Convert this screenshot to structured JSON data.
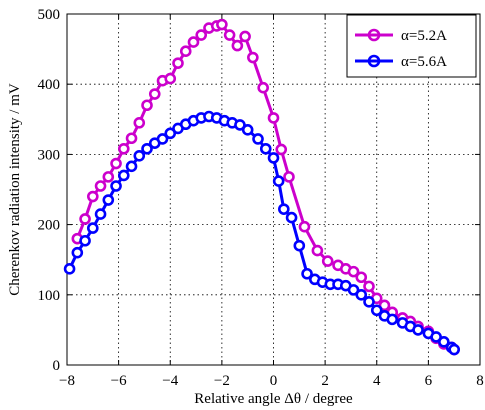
{
  "chart_data": {
    "type": "line",
    "title": "",
    "xlabel": "Relative angle Δθ / degree",
    "ylabel": "Cherenkov radiation intensity / mV",
    "xlim": [
      -8,
      8
    ],
    "ylim": [
      0,
      500
    ],
    "xticks": [
      -8,
      -6,
      -4,
      -2,
      0,
      2,
      4,
      6,
      8
    ],
    "yticks": [
      0,
      100,
      200,
      300,
      400,
      500
    ],
    "xtick_labels": [
      "−8",
      "−6",
      "−4",
      "−2",
      "0",
      "2",
      "4",
      "6",
      "8"
    ],
    "ytick_labels": [
      "0",
      "100",
      "200",
      "300",
      "400",
      "500"
    ],
    "grid": true,
    "grid_style": "dotted",
    "legend_position": "top-right",
    "series": [
      {
        "name": "α=5.2A",
        "color": "#cc00cc",
        "marker": "circle",
        "x": [
          -7.6,
          -7.3,
          -7.0,
          -6.7,
          -6.4,
          -6.1,
          -5.8,
          -5.5,
          -5.2,
          -4.9,
          -4.6,
          -4.3,
          -4.0,
          -3.7,
          -3.4,
          -3.1,
          -2.8,
          -2.5,
          -2.2,
          -2.0,
          -1.7,
          -1.4,
          -1.1,
          -0.8,
          -0.4,
          0.0,
          0.3,
          0.6,
          1.2,
          1.7,
          2.1,
          2.5,
          2.8,
          3.1,
          3.4,
          3.7,
          4.0,
          4.3,
          4.6,
          5.0,
          5.3,
          5.6,
          6.0,
          6.3,
          6.6,
          6.9,
          7.0
        ],
        "y": [
          180,
          208,
          240,
          255,
          268,
          287,
          308,
          323,
          345,
          370,
          386,
          405,
          408,
          430,
          447,
          460,
          470,
          480,
          483,
          485,
          470,
          455,
          468,
          438,
          395,
          352,
          307,
          268,
          197,
          163,
          148,
          142,
          137,
          133,
          125,
          112,
          95,
          85,
          75,
          67,
          62,
          55,
          48,
          38,
          30,
          25,
          22
        ]
      },
      {
        "name": "α=5.6A",
        "color": "#0000ff",
        "marker": "circle",
        "x": [
          -7.9,
          -7.6,
          -7.3,
          -7.0,
          -6.7,
          -6.4,
          -6.1,
          -5.8,
          -5.5,
          -5.2,
          -4.9,
          -4.6,
          -4.3,
          -4.0,
          -3.7,
          -3.4,
          -3.1,
          -2.8,
          -2.5,
          -2.2,
          -1.9,
          -1.6,
          -1.3,
          -1.0,
          -0.6,
          -0.3,
          0.0,
          0.2,
          0.4,
          0.7,
          1.0,
          1.3,
          1.6,
          1.9,
          2.2,
          2.5,
          2.8,
          3.1,
          3.4,
          3.7,
          4.0,
          4.3,
          4.6,
          5.0,
          5.3,
          5.6,
          6.0,
          6.3,
          6.6,
          6.9,
          7.0
        ],
        "y": [
          137,
          160,
          177,
          195,
          215,
          235,
          255,
          270,
          283,
          298,
          308,
          316,
          322,
          330,
          337,
          343,
          348,
          352,
          354,
          352,
          348,
          345,
          342,
          335,
          322,
          308,
          295,
          262,
          222,
          210,
          170,
          130,
          122,
          118,
          115,
          115,
          113,
          107,
          100,
          90,
          78,
          70,
          65,
          60,
          55,
          50,
          45,
          40,
          33,
          25,
          22
        ]
      }
    ]
  }
}
